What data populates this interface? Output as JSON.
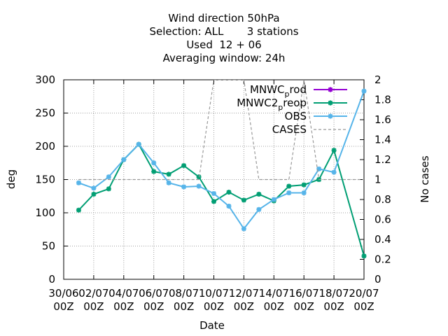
{
  "chart_data": {
    "type": "line",
    "title_lines": [
      "Wind direction 50hPa",
      "Selection: ALL       3 stations",
      "Used  12 + 06",
      "Averaging window: 24h"
    ],
    "xlabel": "Date",
    "ylabel": "deg",
    "y2label": "No cases",
    "xlim": [
      0,
      20
    ],
    "ylim": [
      0,
      300
    ],
    "y2lim": [
      0,
      2
    ],
    "x_ticks": [
      {
        "x": 0,
        "top": "30/06",
        "bottom": "00Z"
      },
      {
        "x": 2,
        "top": "02/07",
        "bottom": "00Z"
      },
      {
        "x": 4,
        "top": "04/07",
        "bottom": "00Z"
      },
      {
        "x": 6,
        "top": "06/07",
        "bottom": "00Z"
      },
      {
        "x": 8,
        "top": "08/07",
        "bottom": "00Z"
      },
      {
        "x": 10,
        "top": "10/07",
        "bottom": "00Z"
      },
      {
        "x": 12,
        "top": "12/07",
        "bottom": "00Z"
      },
      {
        "x": 14,
        "top": "14/07",
        "bottom": "00Z"
      },
      {
        "x": 16,
        "top": "16/07",
        "bottom": "00Z"
      },
      {
        "x": 18,
        "top": "18/07",
        "bottom": "00Z"
      },
      {
        "x": 20,
        "top": "20/07",
        "bottom": "00Z"
      }
    ],
    "y_ticks": [
      "0",
      "50",
      "100",
      "150",
      "200",
      "250",
      "300"
    ],
    "y2_ticks": [
      "0",
      "0.2",
      "0.4",
      "0.6",
      "0.8",
      "1",
      "1.2",
      "1.4",
      "1.6",
      "1.8",
      "2"
    ],
    "grid": true,
    "legend_position": "top-right",
    "series": [
      {
        "name": "MNWC_prod",
        "legend_base": "MNWC",
        "legend_sub": "p",
        "legend_rest": "rod",
        "color": "#9400d3",
        "axis": "y",
        "marker": "star",
        "points": []
      },
      {
        "name": "MNWC2_preop",
        "legend_base": "MNWC2",
        "legend_sub": "p",
        "legend_rest": "reop",
        "color": "#009e73",
        "axis": "y",
        "marker": "star",
        "points": [
          [
            1,
            104
          ],
          [
            2,
            128
          ],
          [
            3,
            136
          ],
          [
            4,
            180
          ],
          [
            5,
            203
          ],
          [
            6,
            162
          ],
          [
            7,
            158
          ],
          [
            8,
            171
          ],
          [
            9,
            154
          ],
          [
            10,
            117
          ],
          [
            11,
            131
          ],
          [
            12,
            119
          ],
          [
            13,
            128
          ],
          [
            14,
            118
          ],
          [
            15,
            140
          ],
          [
            16,
            142
          ],
          [
            17,
            150
          ],
          [
            18,
            194
          ],
          [
            20,
            35
          ]
        ]
      },
      {
        "name": "OBS",
        "legend_base": "OBS",
        "legend_sub": "",
        "legend_rest": "",
        "color": "#56b4e9",
        "axis": "y",
        "marker": "star",
        "points": [
          [
            1,
            145
          ],
          [
            2,
            137
          ],
          [
            3,
            154
          ],
          [
            4,
            180
          ],
          [
            5,
            203
          ],
          [
            6,
            175
          ],
          [
            7,
            145
          ],
          [
            8,
            139
          ],
          [
            9,
            140
          ],
          [
            10,
            129
          ],
          [
            11,
            110
          ],
          [
            12,
            76
          ],
          [
            13,
            105
          ],
          [
            14,
            120
          ],
          [
            15,
            130
          ],
          [
            16,
            130
          ],
          [
            17,
            166
          ],
          [
            18,
            161
          ],
          [
            20,
            283
          ]
        ]
      },
      {
        "name": "CASES",
        "legend_base": "CASES",
        "legend_sub": "",
        "legend_rest": "",
        "color": "#999999",
        "axis": "y2",
        "marker": "none",
        "dashed": true,
        "points": [
          [
            1,
            1
          ],
          [
            2,
            1
          ],
          [
            3,
            1
          ],
          [
            4,
            1
          ],
          [
            5,
            1
          ],
          [
            6,
            1
          ],
          [
            7,
            1
          ],
          [
            8,
            1
          ],
          [
            9,
            1
          ],
          [
            10,
            2
          ],
          [
            11,
            2
          ],
          [
            12,
            2
          ],
          [
            13,
            1
          ],
          [
            14,
            1
          ],
          [
            15,
            1
          ],
          [
            16,
            2
          ],
          [
            17,
            1
          ],
          [
            18,
            1
          ],
          [
            19,
            1
          ],
          [
            20,
            1
          ]
        ]
      }
    ]
  }
}
